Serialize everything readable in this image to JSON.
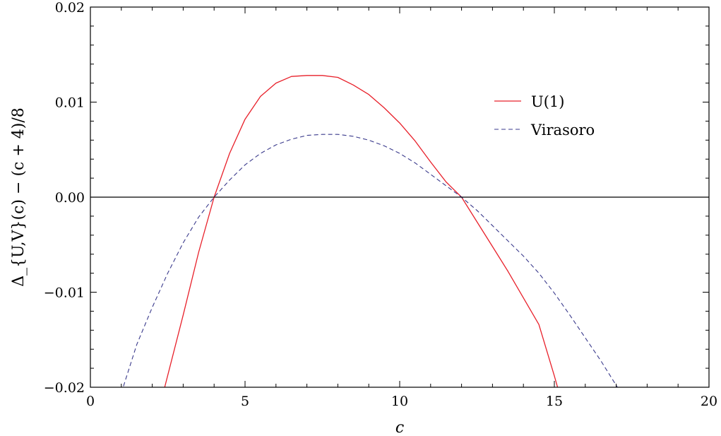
{
  "chart_data": {
    "type": "line",
    "title": "",
    "xlabel": "c",
    "ylabel": "Δ_{U,V}(c) − (c + 4)/8",
    "xlim": [
      0,
      20
    ],
    "ylim": [
      -0.02,
      0.02
    ],
    "x_ticks": [
      "0",
      "5",
      "10",
      "15",
      "20"
    ],
    "y_ticks": [
      "−0.02",
      "−0.01",
      "0.00",
      "0.01",
      "0.02"
    ],
    "grid": false,
    "legend_position": "top-right",
    "reference_line_y": 0,
    "series": [
      {
        "name": "U(1)",
        "color": "#e8202a",
        "dash": "solid",
        "x": [
          2.38,
          3,
          3.5,
          4,
          4.5,
          5,
          5.5,
          6,
          6.5,
          7,
          7.5,
          8,
          8.5,
          9,
          9.5,
          10,
          10.5,
          11,
          11.5,
          12,
          12.5,
          13,
          13.5,
          14,
          14.5,
          15,
          15.13
        ],
        "y": [
          -0.0203,
          -0.0124,
          -0.0058,
          0.0,
          0.0046,
          0.0082,
          0.0106,
          0.012,
          0.0127,
          0.0128,
          0.0128,
          0.0126,
          0.0118,
          0.0108,
          0.0094,
          0.0078,
          0.0059,
          0.0037,
          0.0016,
          0.0,
          -0.0026,
          -0.0052,
          -0.0078,
          -0.0106,
          -0.0134,
          -0.0188,
          -0.0203
        ]
      },
      {
        "name": "Virasoro",
        "color": "#3a3a8c",
        "dash": "dashed",
        "x": [
          1.0,
          1.5,
          2,
          2.5,
          3,
          3.5,
          4,
          4.5,
          5,
          5.5,
          6,
          6.5,
          7,
          7.5,
          8,
          8.5,
          9,
          9.5,
          10,
          10.5,
          11,
          11.5,
          12,
          12.5,
          13,
          13.5,
          14,
          14.5,
          15,
          15.5,
          16,
          16.5,
          17,
          17.2
        ],
        "y": [
          -0.0206,
          -0.0155,
          -0.0116,
          -0.008,
          -0.0048,
          -0.0021,
          0.0,
          0.0018,
          0.0034,
          0.0046,
          0.0055,
          0.0061,
          0.0065,
          0.0066,
          0.0066,
          0.0064,
          0.006,
          0.0054,
          0.0046,
          0.0036,
          0.0024,
          0.0012,
          0.0,
          -0.0014,
          -0.003,
          -0.0046,
          -0.0062,
          -0.008,
          -0.0101,
          -0.0124,
          -0.0148,
          -0.0172,
          -0.0198,
          -0.0208
        ]
      }
    ]
  }
}
